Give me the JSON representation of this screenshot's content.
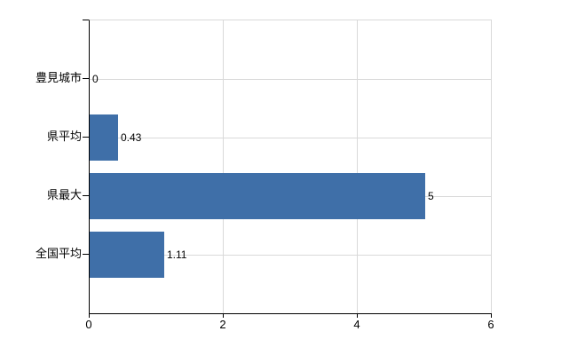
{
  "chart_data": {
    "type": "bar",
    "orientation": "horizontal",
    "categories": [
      "豊見城市",
      "県平均",
      "県最大",
      "全国平均"
    ],
    "values": [
      0,
      0.43,
      5,
      1.11
    ],
    "value_labels": [
      "0",
      "0.43",
      "5",
      "1.11"
    ],
    "xlim": [
      0,
      6
    ],
    "x_ticks": [
      0,
      2,
      4,
      6
    ],
    "x_tick_labels": [
      "0",
      "2",
      "4",
      "6"
    ],
    "grid": true,
    "legend": false,
    "colors": {
      "bar": "#3f6fa8",
      "grid": "#d9d9d9",
      "axis": "#000000",
      "text": "#000000",
      "background": "#ffffff"
    }
  }
}
